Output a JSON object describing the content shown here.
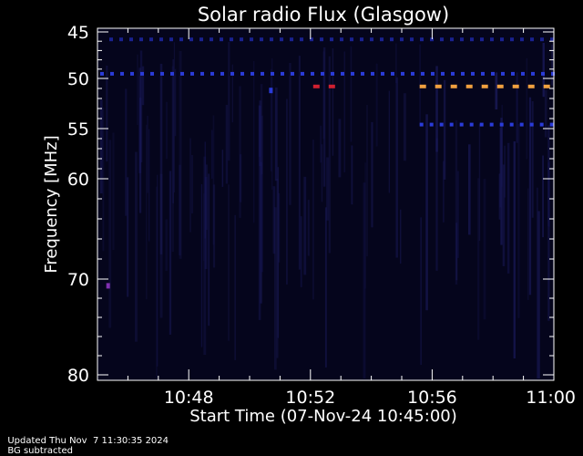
{
  "chart_data": {
    "type": "heatmap",
    "title": "Solar radio Flux (Glasgow)",
    "xlabel": "Start Time (07-Nov-24 10:45:00)",
    "ylabel": "Frequency [MHz]",
    "x_start": "10:45:00",
    "x_end": "11:00:00",
    "x_tick_labels": [
      "10:48",
      "10:52",
      "10:56",
      "11:00"
    ],
    "x_tick_values_min": [
      3,
      7,
      11,
      15
    ],
    "y_range": [
      45,
      80
    ],
    "y_tick_values": [
      45,
      50,
      55,
      60,
      70,
      80
    ],
    "y_tick_labels": [
      "45",
      "50",
      "55",
      "60",
      "70",
      "80"
    ],
    "y_axis_direction": "inverted",
    "background_colormap": "dark navy (low flux)",
    "features": [
      {
        "kind": "dashed-band",
        "freq_mhz": 49.5,
        "t_start_min": 0.0,
        "t_end_min": 15.0,
        "color": "#2a3bd8"
      },
      {
        "kind": "dashed-band",
        "freq_mhz": 50.8,
        "t_start_min": 7.0,
        "t_end_min": 8.0,
        "color": "#d02030"
      },
      {
        "kind": "dashed-band",
        "freq_mhz": 50.8,
        "t_start_min": 10.5,
        "t_end_min": 15.0,
        "color": "#f0a040"
      },
      {
        "kind": "dashed-band",
        "freq_mhz": 54.6,
        "t_start_min": 10.5,
        "t_end_min": 15.0,
        "color": "#2a3bd8"
      },
      {
        "kind": "dashed-band",
        "freq_mhz": 45.8,
        "t_start_min": 0.3,
        "t_end_min": 15.0,
        "color": "#1a2290"
      },
      {
        "kind": "spot",
        "freq_mhz": 70.7,
        "t_min": 0.35,
        "color": "#8030b0"
      },
      {
        "kind": "spot",
        "freq_mhz": 51.2,
        "t_min": 5.7,
        "color": "#2a3bd8"
      }
    ]
  },
  "footer": {
    "updated": "Updated Thu Nov  7 11:30:35 2024",
    "note": "BG subtracted"
  }
}
